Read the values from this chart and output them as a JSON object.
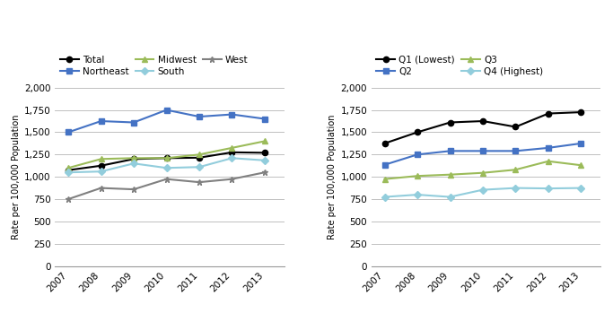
{
  "years": [
    2007,
    2008,
    2009,
    2010,
    2011,
    2012,
    2013
  ],
  "left": {
    "Total": [
      1075,
      1125,
      1200,
      1210,
      1215,
      1275,
      1270
    ],
    "Northeast": [
      1500,
      1625,
      1610,
      1750,
      1675,
      1700,
      1650
    ],
    "Midwest": [
      1100,
      1200,
      1210,
      1210,
      1250,
      1325,
      1400
    ],
    "South": [
      1050,
      1060,
      1150,
      1100,
      1110,
      1210,
      1185
    ],
    "West": [
      750,
      875,
      860,
      975,
      940,
      975,
      1050
    ]
  },
  "right": {
    "Q1 (Lowest)": [
      1375,
      1500,
      1610,
      1625,
      1560,
      1710,
      1725
    ],
    "Q2": [
      1135,
      1250,
      1290,
      1290,
      1290,
      1325,
      1375
    ],
    "Q3": [
      975,
      1010,
      1025,
      1045,
      1080,
      1175,
      1130
    ],
    "Q4 (Highest)": [
      775,
      800,
      775,
      855,
      875,
      870,
      875
    ]
  },
  "left_series_styles": {
    "Total": {
      "color": "#000000",
      "marker": "o",
      "linestyle": "-"
    },
    "Northeast": {
      "color": "#4472C4",
      "marker": "s",
      "linestyle": "-"
    },
    "Midwest": {
      "color": "#9BBB59",
      "marker": "^",
      "linestyle": "-"
    },
    "South": {
      "color": "#92CDDC",
      "marker": "D",
      "linestyle": "-"
    },
    "West": {
      "color": "#808080",
      "marker": "*",
      "linestyle": "-"
    }
  },
  "right_series_styles": {
    "Q1 (Lowest)": {
      "color": "#000000",
      "marker": "o",
      "linestyle": "-"
    },
    "Q2": {
      "color": "#4472C4",
      "marker": "s",
      "linestyle": "-"
    },
    "Q3": {
      "color": "#9BBB59",
      "marker": "^",
      "linestyle": "-"
    },
    "Q4 (Highest)": {
      "color": "#92CDDC",
      "marker": "D",
      "linestyle": "-"
    }
  },
  "ylabel": "Rate per 100,000 Population",
  "ylim": [
    0,
    2000
  ],
  "yticks": [
    0,
    250,
    500,
    750,
    1000,
    1250,
    1500,
    1750,
    2000
  ],
  "xlim": [
    2006.6,
    2013.6
  ],
  "background_color": "#ffffff",
  "grid_color": "#c0c0c0"
}
